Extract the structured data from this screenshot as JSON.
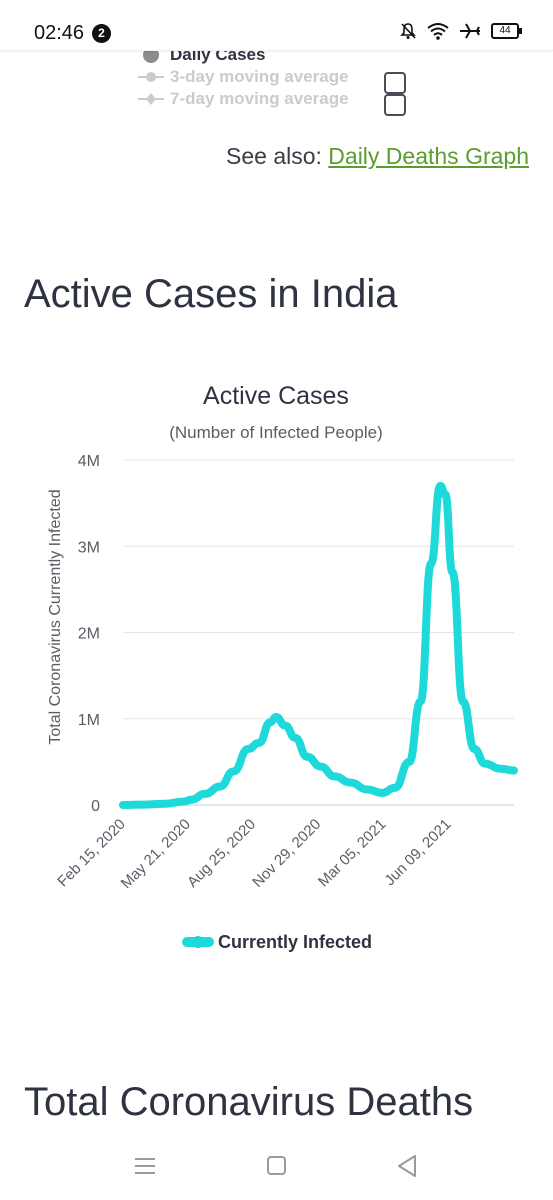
{
  "status_bar": {
    "time": "02:46",
    "notification_count": "2",
    "battery": "44"
  },
  "top_legend": {
    "items": [
      {
        "label": "Daily Cases"
      },
      {
        "label": "3-day moving average"
      },
      {
        "label": "7-day moving average"
      }
    ]
  },
  "see_also": {
    "prefix": "See also: ",
    "link": "Daily Deaths Graph"
  },
  "sections": {
    "active_heading": "Active Cases in India",
    "deaths_heading": "Total Coronavirus Deaths"
  },
  "colors": {
    "series": "#1ed9d9",
    "text": "#2f3341",
    "link": "#5a9e2c",
    "grid": "#e6e6e6"
  },
  "chart_data": {
    "type": "line",
    "title": "Active Cases",
    "subtitle": "(Number of Infected People)",
    "ylabel": "Total Coronavirus Currently Infected",
    "xlabel": "",
    "ylim": [
      0,
      4000000
    ],
    "yticks": [
      {
        "value": 0,
        "label": "0"
      },
      {
        "value": 1000000,
        "label": "1M"
      },
      {
        "value": 2000000,
        "label": "2M"
      },
      {
        "value": 3000000,
        "label": "3M"
      },
      {
        "value": 4000000,
        "label": "4M"
      }
    ],
    "xticks": [
      "Feb 15, 2020",
      "May 21, 2020",
      "Aug 25, 2020",
      "Nov 29, 2020",
      "Mar 05, 2021",
      "Jun 09, 2021"
    ],
    "x_range": [
      "2020-02-15",
      "2021-08-20"
    ],
    "grid": true,
    "legend_position": "bottom",
    "series": [
      {
        "name": "Currently Infected",
        "color": "#1ed9d9",
        "points": [
          [
            "2020-02-15",
            0
          ],
          [
            "2020-03-15",
            5000
          ],
          [
            "2020-04-15",
            15000
          ],
          [
            "2020-05-10",
            40000
          ],
          [
            "2020-05-21",
            60000
          ],
          [
            "2020-06-10",
            130000
          ],
          [
            "2020-07-01",
            215000
          ],
          [
            "2020-07-20",
            390000
          ],
          [
            "2020-08-10",
            650000
          ],
          [
            "2020-08-25",
            720000
          ],
          [
            "2020-09-10",
            960000
          ],
          [
            "2020-09-18",
            1020000
          ],
          [
            "2020-10-01",
            920000
          ],
          [
            "2020-10-15",
            780000
          ],
          [
            "2020-11-01",
            560000
          ],
          [
            "2020-11-20",
            445000
          ],
          [
            "2020-12-10",
            330000
          ],
          [
            "2021-01-01",
            260000
          ],
          [
            "2021-01-25",
            180000
          ],
          [
            "2021-02-15",
            140000
          ],
          [
            "2021-03-05",
            200000
          ],
          [
            "2021-03-25",
            500000
          ],
          [
            "2021-04-10",
            1200000
          ],
          [
            "2021-04-25",
            2800000
          ],
          [
            "2021-05-08",
            3700000
          ],
          [
            "2021-05-15",
            3600000
          ],
          [
            "2021-05-25",
            2700000
          ],
          [
            "2021-06-09",
            1200000
          ],
          [
            "2021-06-25",
            650000
          ],
          [
            "2021-07-10",
            480000
          ],
          [
            "2021-08-01",
            420000
          ],
          [
            "2021-08-20",
            400000
          ]
        ]
      }
    ]
  }
}
